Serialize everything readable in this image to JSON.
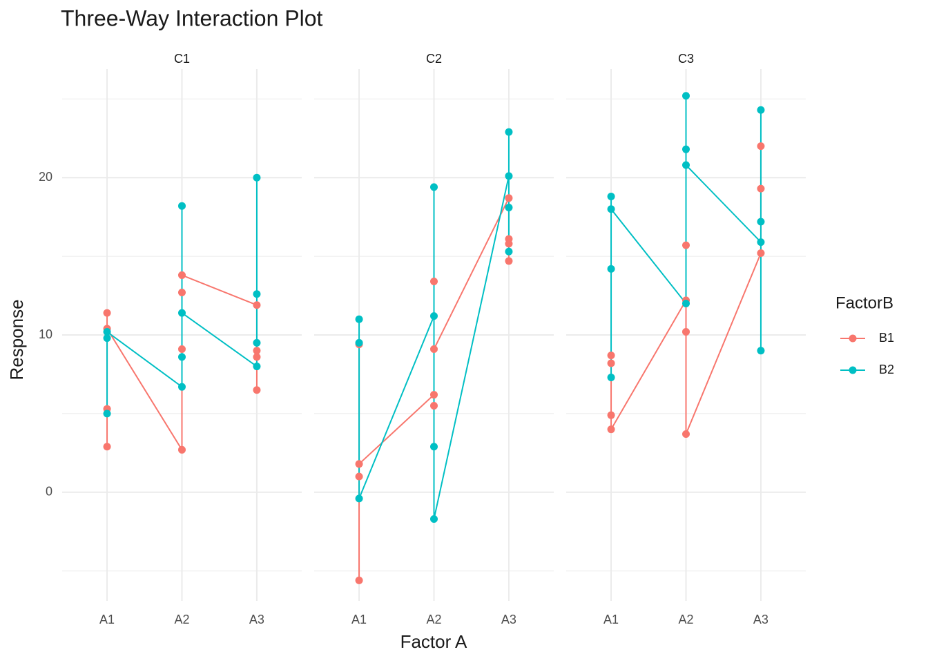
{
  "title": "Three-Way Interaction Plot",
  "x_label": "Factor A",
  "y_label": "Response",
  "legend_title": "FactorB",
  "chart_data": [
    {
      "type": "line",
      "title": "C1",
      "categories": [
        "A1",
        "A2",
        "A3"
      ],
      "ylim": [
        -6.9,
        26.9
      ],
      "yticks": [
        0,
        10,
        20
      ],
      "grid": true,
      "series": [
        {
          "name": "B1",
          "color": "#F8766D",
          "x": [
            "A1",
            "A1",
            "A1",
            "A1",
            "A2",
            "A2",
            "A2",
            "A2",
            "A3",
            "A3",
            "A3",
            "A3"
          ],
          "values": [
            11.4,
            2.9,
            5.3,
            10.4,
            2.7,
            9.1,
            12.7,
            13.8,
            11.9,
            6.5,
            8.6,
            9.0
          ]
        },
        {
          "name": "B2",
          "color": "#00BFC4",
          "x": [
            "A1",
            "A1",
            "A1",
            "A2",
            "A2",
            "A2",
            "A2",
            "A3",
            "A3",
            "A3",
            "A3"
          ],
          "values": [
            9.8,
            5.0,
            10.2,
            6.7,
            18.2,
            8.6,
            11.4,
            8.0,
            20.0,
            12.6,
            9.5
          ]
        }
      ]
    },
    {
      "type": "line",
      "title": "C2",
      "categories": [
        "A1",
        "A2",
        "A3"
      ],
      "ylim": [
        -6.9,
        26.9
      ],
      "yticks": [
        0,
        10,
        20
      ],
      "grid": true,
      "series": [
        {
          "name": "B1",
          "color": "#F8766D",
          "x": [
            "A1",
            "A1",
            "A1",
            "A1",
            "A2",
            "A2",
            "A2",
            "A2",
            "A3",
            "A3",
            "A3",
            "A3"
          ],
          "values": [
            9.4,
            -5.6,
            1.0,
            1.8,
            6.2,
            5.5,
            13.4,
            9.1,
            18.7,
            14.7,
            16.1,
            15.8
          ]
        },
        {
          "name": "B2",
          "color": "#00BFC4",
          "x": [
            "A1",
            "A1",
            "A1",
            "A2",
            "A2",
            "A2",
            "A2",
            "A3",
            "A3",
            "A3",
            "A3"
          ],
          "values": [
            9.5,
            11.0,
            -0.4,
            11.2,
            19.4,
            2.9,
            -1.7,
            20.1,
            22.9,
            18.1,
            15.3
          ]
        }
      ]
    },
    {
      "type": "line",
      "title": "C3",
      "categories": [
        "A1",
        "A2",
        "A3"
      ],
      "ylim": [
        -6.9,
        26.9
      ],
      "yticks": [
        0,
        10,
        20
      ],
      "grid": true,
      "series": [
        {
          "name": "B1",
          "color": "#F8766D",
          "x": [
            "A1",
            "A1",
            "A1",
            "A1",
            "A2",
            "A2",
            "A2",
            "A2",
            "A3",
            "A3",
            "A3"
          ],
          "values": [
            8.7,
            8.2,
            4.9,
            4.0,
            12.2,
            15.7,
            10.2,
            3.7,
            15.2,
            22.0,
            19.3
          ]
        },
        {
          "name": "B2",
          "color": "#00BFC4",
          "x": [
            "A1",
            "A1",
            "A1",
            "A1",
            "A2",
            "A2",
            "A2",
            "A2",
            "A3",
            "A3",
            "A3",
            "A3"
          ],
          "values": [
            18.8,
            7.3,
            14.2,
            18.0,
            12.0,
            25.2,
            21.8,
            20.8,
            15.9,
            24.3,
            17.2,
            9.0
          ]
        }
      ]
    }
  ]
}
